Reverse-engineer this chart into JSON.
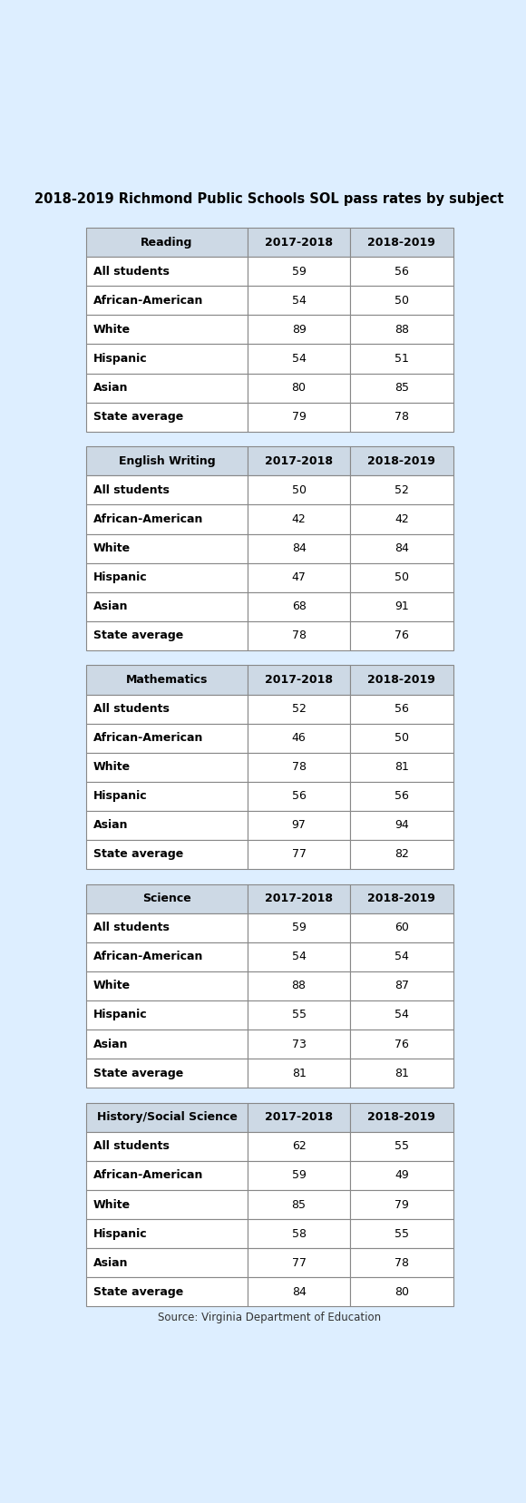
{
  "title": "2018-2019 Richmond Public Schools SOL pass rates by subject",
  "source": "Source: Virginia Department of Education",
  "header_bg": "#cdd9e5",
  "header_color": "#000000",
  "row_bg": "#ffffff",
  "border_color": "#888888",
  "col_headers": [
    "2017-2018",
    "2018-2019"
  ],
  "tables": [
    {
      "subject": "Reading",
      "rows": [
        [
          "All students",
          "59",
          "56"
        ],
        [
          "African-American",
          "54",
          "50"
        ],
        [
          "White",
          "89",
          "88"
        ],
        [
          "Hispanic",
          "54",
          "51"
        ],
        [
          "Asian",
          "80",
          "85"
        ],
        [
          "State average",
          "79",
          "78"
        ]
      ]
    },
    {
      "subject": "English Writing",
      "rows": [
        [
          "All students",
          "50",
          "52"
        ],
        [
          "African-American",
          "42",
          "42"
        ],
        [
          "White",
          "84",
          "84"
        ],
        [
          "Hispanic",
          "47",
          "50"
        ],
        [
          "Asian",
          "68",
          "91"
        ],
        [
          "State average",
          "78",
          "76"
        ]
      ]
    },
    {
      "subject": "Mathematics",
      "rows": [
        [
          "All students",
          "52",
          "56"
        ],
        [
          "African-American",
          "46",
          "50"
        ],
        [
          "White",
          "78",
          "81"
        ],
        [
          "Hispanic",
          "56",
          "56"
        ],
        [
          "Asian",
          "97",
          "94"
        ],
        [
          "State average",
          "77",
          "82"
        ]
      ]
    },
    {
      "subject": "Science",
      "rows": [
        [
          "All students",
          "59",
          "60"
        ],
        [
          "African-American",
          "54",
          "54"
        ],
        [
          "White",
          "88",
          "87"
        ],
        [
          "Hispanic",
          "55",
          "54"
        ],
        [
          "Asian",
          "73",
          "76"
        ],
        [
          "State average",
          "81",
          "81"
        ]
      ]
    },
    {
      "subject": "History/Social Science",
      "rows": [
        [
          "All students",
          "62",
          "55"
        ],
        [
          "African-American",
          "59",
          "49"
        ],
        [
          "White",
          "85",
          "79"
        ],
        [
          "Hispanic",
          "58",
          "55"
        ],
        [
          "Asian",
          "77",
          "78"
        ],
        [
          "State average",
          "84",
          "80"
        ]
      ]
    }
  ]
}
